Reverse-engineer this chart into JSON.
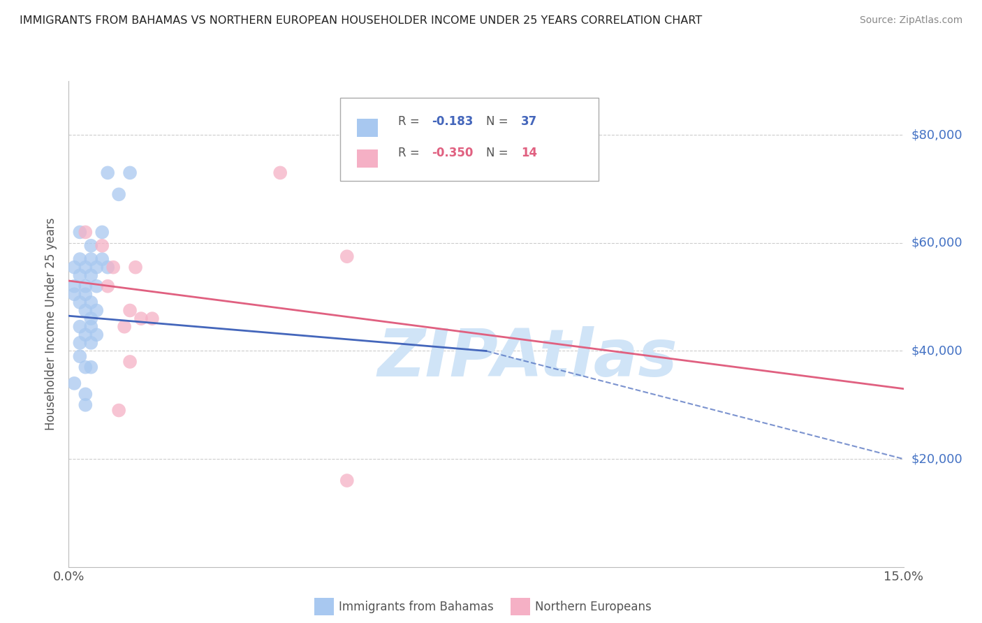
{
  "title": "IMMIGRANTS FROM BAHAMAS VS NORTHERN EUROPEAN HOUSEHOLDER INCOME UNDER 25 YEARS CORRELATION CHART",
  "source": "Source: ZipAtlas.com",
  "ylabel": "Householder Income Under 25 years",
  "xlim": [
    0.0,
    0.15
  ],
  "ylim": [
    0,
    90000
  ],
  "yticks": [
    0,
    20000,
    40000,
    60000,
    80000
  ],
  "right_ytick_labels": [
    "$80,000",
    "$60,000",
    "$40,000",
    "$20,000"
  ],
  "blue_label": "Immigrants from Bahamas",
  "pink_label": "Northern Europeans",
  "blue_R_val": "-0.183",
  "blue_N_val": "37",
  "pink_R_val": "-0.350",
  "pink_N_val": "14",
  "blue_color": "#a8c8f0",
  "pink_color": "#f5b0c5",
  "blue_line_color": "#4466bb",
  "pink_line_color": "#e06080",
  "blue_scatter": [
    [
      0.007,
      73000
    ],
    [
      0.011,
      73000
    ],
    [
      0.009,
      69000
    ],
    [
      0.002,
      62000
    ],
    [
      0.006,
      62000
    ],
    [
      0.004,
      59500
    ],
    [
      0.002,
      57000
    ],
    [
      0.004,
      57000
    ],
    [
      0.006,
      57000
    ],
    [
      0.001,
      55500
    ],
    [
      0.003,
      55500
    ],
    [
      0.005,
      55500
    ],
    [
      0.007,
      55500
    ],
    [
      0.002,
      54000
    ],
    [
      0.004,
      54000
    ],
    [
      0.001,
      52000
    ],
    [
      0.003,
      52000
    ],
    [
      0.005,
      52000
    ],
    [
      0.001,
      50500
    ],
    [
      0.003,
      50500
    ],
    [
      0.002,
      49000
    ],
    [
      0.004,
      49000
    ],
    [
      0.003,
      47500
    ],
    [
      0.005,
      47500
    ],
    [
      0.004,
      46000
    ],
    [
      0.002,
      44500
    ],
    [
      0.004,
      44500
    ],
    [
      0.003,
      43000
    ],
    [
      0.005,
      43000
    ],
    [
      0.002,
      41500
    ],
    [
      0.004,
      41500
    ],
    [
      0.002,
      39000
    ],
    [
      0.003,
      37000
    ],
    [
      0.004,
      37000
    ],
    [
      0.001,
      34000
    ],
    [
      0.003,
      32000
    ],
    [
      0.003,
      30000
    ]
  ],
  "pink_scatter": [
    [
      0.038,
      73000
    ],
    [
      0.003,
      62000
    ],
    [
      0.006,
      59500
    ],
    [
      0.008,
      55500
    ],
    [
      0.012,
      55500
    ],
    [
      0.007,
      52000
    ],
    [
      0.011,
      47500
    ],
    [
      0.013,
      46000
    ],
    [
      0.015,
      46000
    ],
    [
      0.01,
      44500
    ],
    [
      0.05,
      57500
    ],
    [
      0.011,
      38000
    ],
    [
      0.009,
      29000
    ],
    [
      0.05,
      16000
    ]
  ],
  "blue_line": [
    0.0,
    0.075,
    46500,
    40000
  ],
  "pink_line": [
    0.0,
    0.15,
    53000,
    33000
  ],
  "blue_dash": [
    0.075,
    0.15,
    40000,
    20000
  ],
  "watermark": "ZIPAtlas",
  "watermark_color": "#d0e4f7",
  "background_color": "#ffffff",
  "grid_color": "#cccccc",
  "title_color": "#222222",
  "right_label_color": "#4472c4",
  "xtick_positions": [
    0.0,
    0.025,
    0.05,
    0.075,
    0.1,
    0.125,
    0.15
  ]
}
